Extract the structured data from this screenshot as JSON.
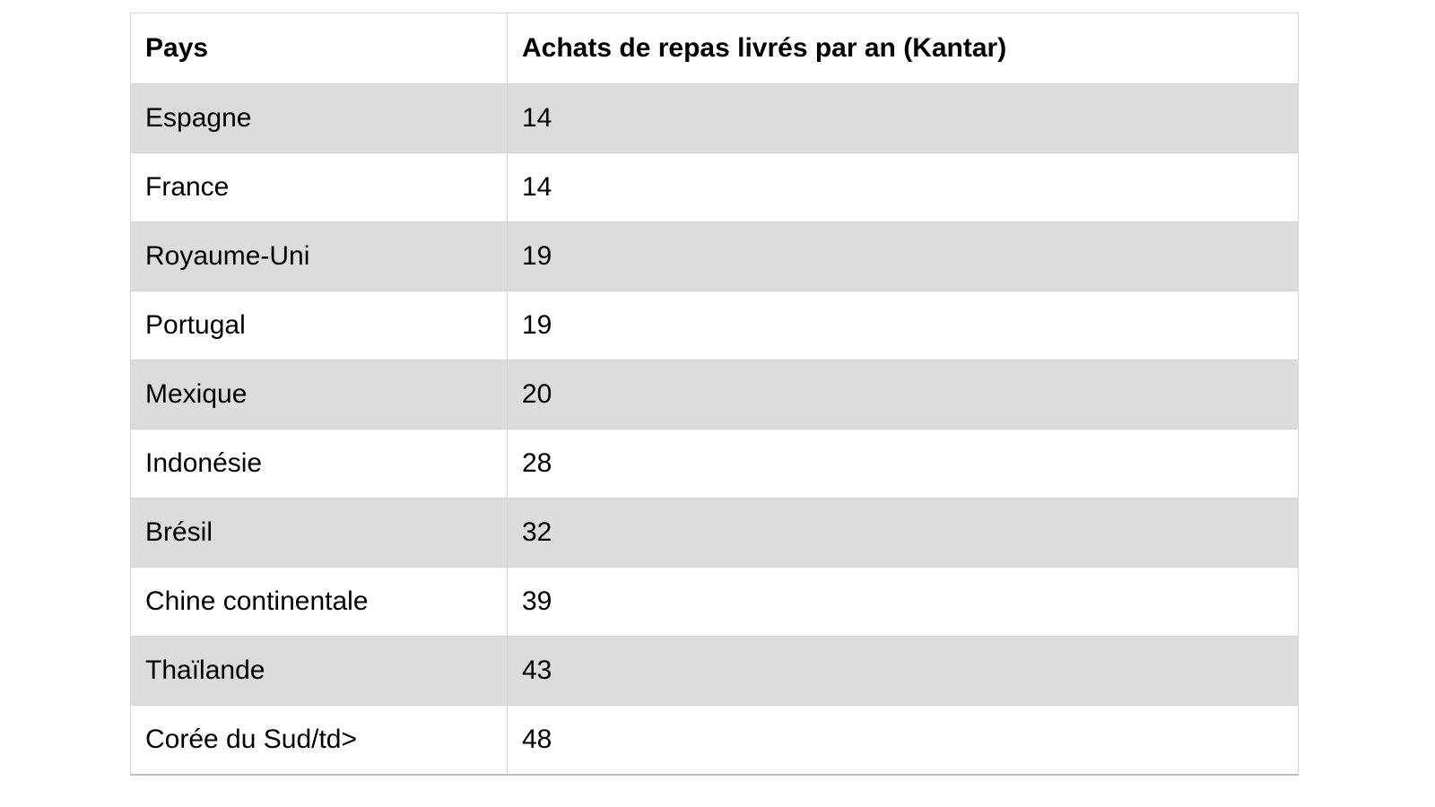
{
  "chart_data": {
    "type": "table",
    "columns": [
      "Pays",
      "Achats de repas livrés par an (Kantar)"
    ],
    "rows": [
      [
        "Espagne",
        14
      ],
      [
        "France",
        14
      ],
      [
        "Royaume-Uni",
        19
      ],
      [
        "Portugal",
        19
      ],
      [
        "Mexique",
        20
      ],
      [
        "Indonésie",
        28
      ],
      [
        "Brésil",
        32
      ],
      [
        "Chine continentale",
        39
      ],
      [
        "Thaïlande",
        43
      ],
      [
        "Corée du Sud/td>",
        48
      ]
    ],
    "layout": {
      "alternating_row_shading": true,
      "first_data_row_shaded": true,
      "header_bold": true
    }
  },
  "colors": {
    "row_alt_background": "#dcdcdc",
    "row_background": "#ffffff",
    "cell_border": "#d5d5d5",
    "table_bottom_border": "#c0c0c0",
    "text": "#000000"
  }
}
